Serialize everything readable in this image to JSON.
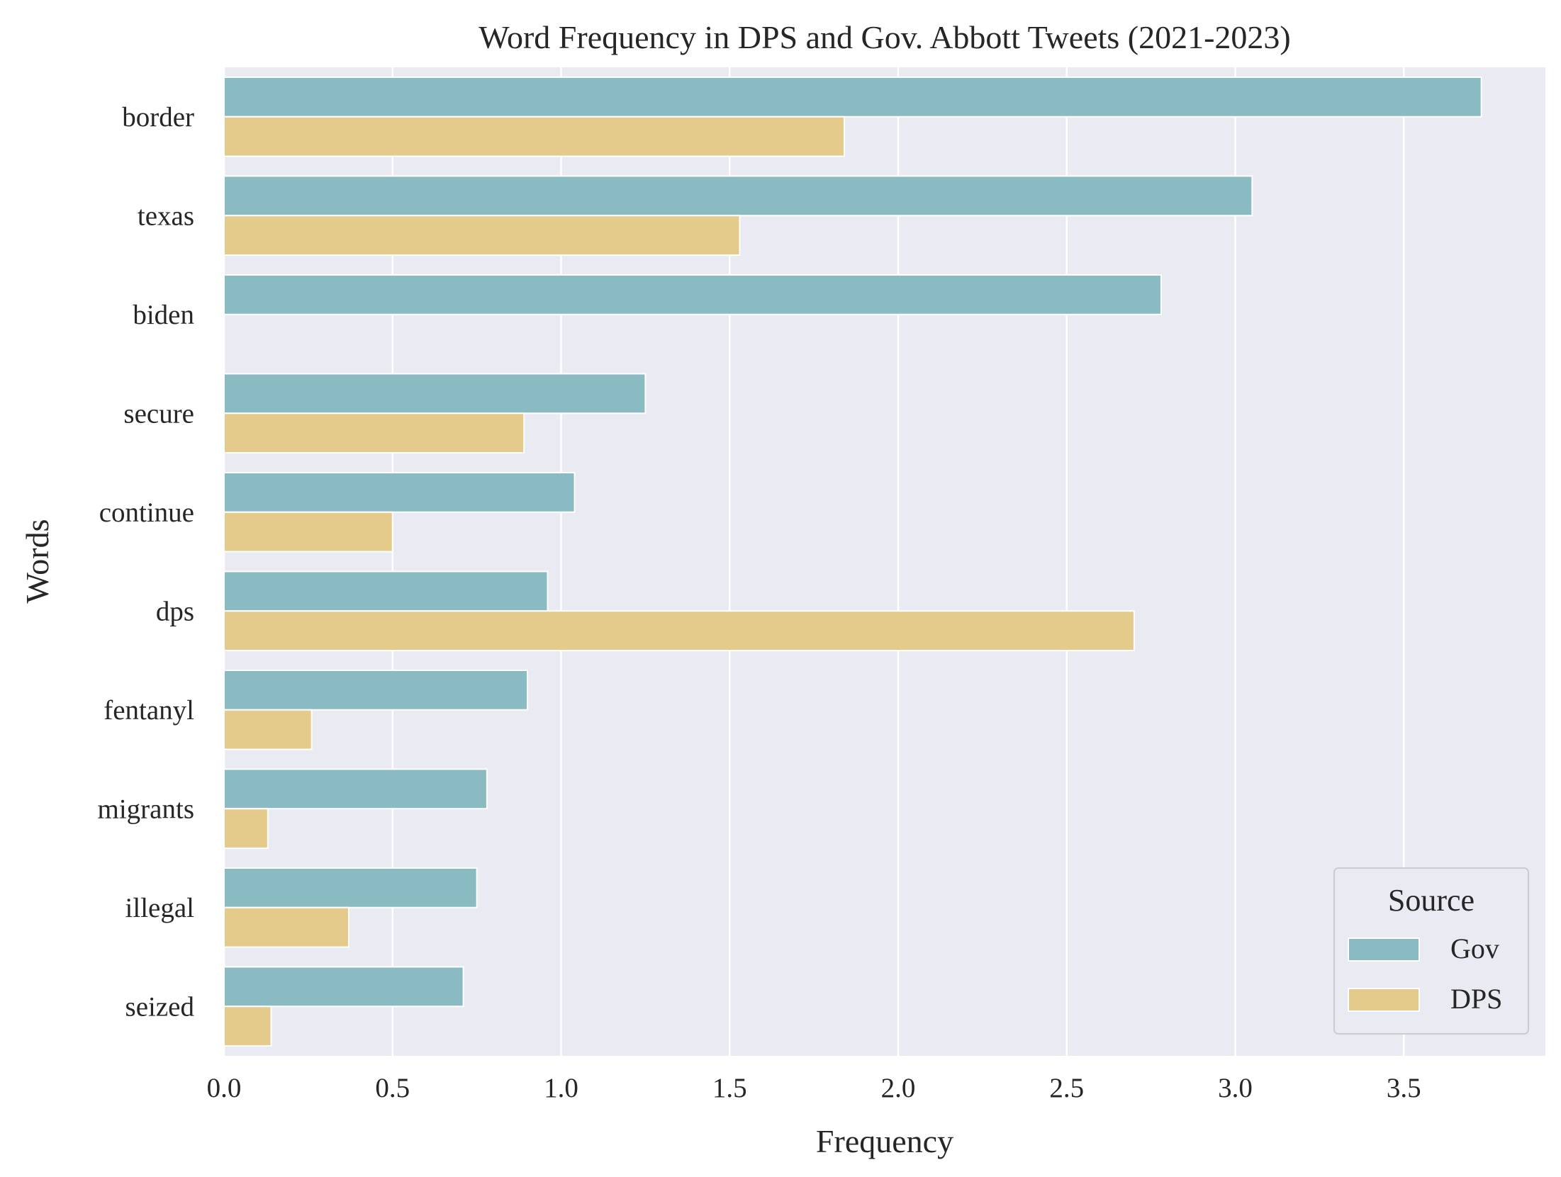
{
  "chart_data": {
    "type": "bar",
    "orientation": "horizontal",
    "title": "Word Frequency in DPS and Gov. Abbott Tweets (2021-2023)",
    "xlabel": "Frequency",
    "ylabel": "Words",
    "categories": [
      "border",
      "texas",
      "biden",
      "secure",
      "continue",
      "dps",
      "fentanyl",
      "migrants",
      "illegal",
      "seized"
    ],
    "series": [
      {
        "name": "Gov",
        "color": "#8abbc2",
        "values": [
          3.73,
          3.05,
          2.78,
          1.25,
          1.04,
          0.96,
          0.9,
          0.78,
          0.75,
          0.71
        ]
      },
      {
        "name": "DPS",
        "color": "#e4cb8c",
        "values": [
          1.84,
          1.53,
          0.0,
          0.89,
          0.5,
          2.7,
          0.26,
          0.13,
          0.37,
          0.14
        ]
      }
    ],
    "xlim": [
      0,
      3.92
    ],
    "xticks": [
      0.0,
      0.5,
      1.0,
      1.5,
      2.0,
      2.5,
      3.0,
      3.5
    ],
    "xtick_labels": [
      "0.0",
      "0.5",
      "1.0",
      "1.5",
      "2.0",
      "2.5",
      "3.0",
      "3.5"
    ],
    "grid": true,
    "background": "#eaeaf2",
    "legend": {
      "title": "Source",
      "placement": "lower-right"
    }
  }
}
